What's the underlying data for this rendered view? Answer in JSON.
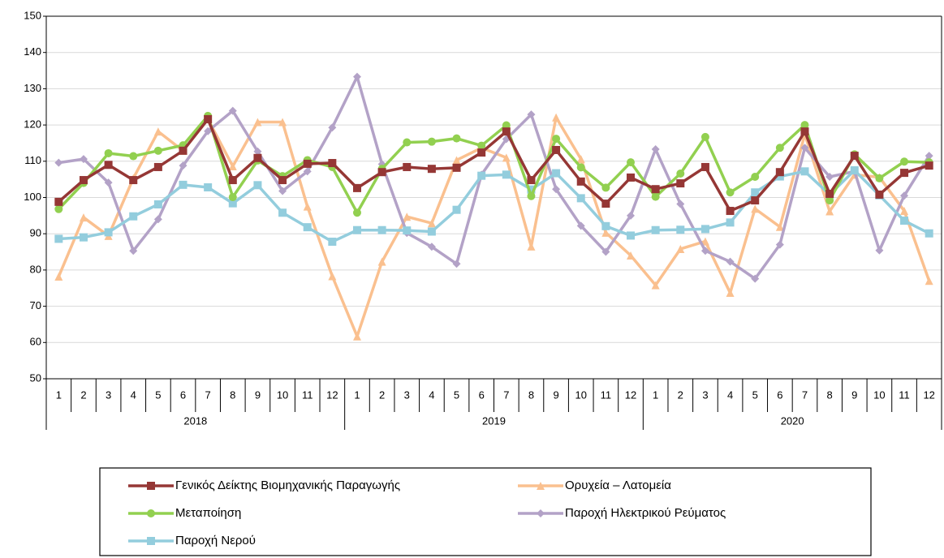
{
  "chart_data": {
    "type": "line",
    "categories": [
      "1",
      "2",
      "3",
      "4",
      "5",
      "6",
      "7",
      "8",
      "9",
      "10",
      "11",
      "12",
      "1",
      "2",
      "3",
      "4",
      "5",
      "6",
      "7",
      "8",
      "9",
      "10",
      "11",
      "12",
      "1",
      "2",
      "3",
      "4",
      "5",
      "6",
      "7",
      "8",
      "9",
      "10",
      "11",
      "12"
    ],
    "category_groups": [
      "2018",
      "2019",
      "2020"
    ],
    "ylim": [
      50,
      150
    ],
    "yticks": [
      50,
      60,
      70,
      80,
      90,
      100,
      110,
      120,
      130,
      140,
      150
    ],
    "grid": true,
    "series": [
      {
        "name": "Γενικός Δείκτης Βιομηχανικής Παραγωγής",
        "color": "#953735",
        "marker": "square",
        "values": [
          98.8,
          104.8,
          109,
          104.8,
          108.4,
          112.9,
          121.6,
          104.8,
          110.9,
          104.8,
          109.3,
          109.5,
          102.6,
          107,
          108.4,
          107.9,
          108.2,
          112.4,
          118.2,
          104.8,
          113.1,
          104.4,
          98.3,
          105.5,
          102.3,
          103.9,
          108.4,
          96.3,
          99.2,
          107,
          118.2,
          101,
          111.5,
          100.8,
          106.8,
          108.8
        ]
      },
      {
        "name": "Ορυχεία – Λατομεία",
        "color": "#fac08f",
        "marker": "triangle",
        "values": [
          78.2,
          94.5,
          89.4,
          105.3,
          118.2,
          112.9,
          121.6,
          108.6,
          120.8,
          120.8,
          97.5,
          78.3,
          61.7,
          82.3,
          94.7,
          92.9,
          110.3,
          113.7,
          111,
          86.5,
          122.1,
          110.6,
          90.3,
          84,
          75.8,
          85.8,
          87.9,
          73.7,
          96.9,
          91.9,
          117.4,
          96.2,
          106.3,
          105.6,
          96.3,
          77
        ]
      },
      {
        "name": "Μεταποίηση",
        "color": "#92d050",
        "marker": "circle",
        "values": [
          96.8,
          104,
          112.2,
          111.4,
          112.9,
          114.4,
          122.5,
          100.1,
          110.2,
          105.9,
          110.3,
          108.4,
          95.8,
          107.9,
          115.2,
          115.4,
          116.3,
          114.3,
          119.9,
          100.4,
          116.2,
          108.3,
          102.7,
          109.7,
          100.2,
          106.6,
          116.7,
          101.4,
          105.7,
          113.7,
          120,
          99.2,
          111.9,
          105.3,
          109.9,
          109.7
        ]
      },
      {
        "name": "Παροχή Ηλεκτρικού Ρεύματος",
        "color": "#b3a2c7",
        "marker": "diamond",
        "values": [
          109.6,
          110.6,
          104.1,
          85.3,
          94,
          108.8,
          118.3,
          123.9,
          112.7,
          101.8,
          107.2,
          119.3,
          133.3,
          109.2,
          90.2,
          86.4,
          81.7,
          106.3,
          116.1,
          122.9,
          102.3,
          92.2,
          85,
          95,
          113.3,
          98.2,
          85.3,
          82.3,
          77.6,
          87,
          113.7,
          105.7,
          107.2,
          85.4,
          100.5,
          111.5
        ]
      },
      {
        "name": "Παροχή Νερού",
        "color": "#93cddd",
        "marker": "square",
        "values": [
          88.6,
          89,
          90.4,
          94.8,
          98.1,
          103.5,
          102.8,
          98.4,
          103.4,
          95.8,
          91.8,
          87.8,
          91,
          91,
          90.9,
          90.6,
          96.6,
          106,
          106.3,
          102.2,
          106.7,
          99.8,
          92.1,
          89.5,
          91,
          91.1,
          91.3,
          93.1,
          101.4,
          105.8,
          107.2,
          100.8,
          107.5,
          100.6,
          93.6,
          90.1
        ]
      }
    ]
  }
}
